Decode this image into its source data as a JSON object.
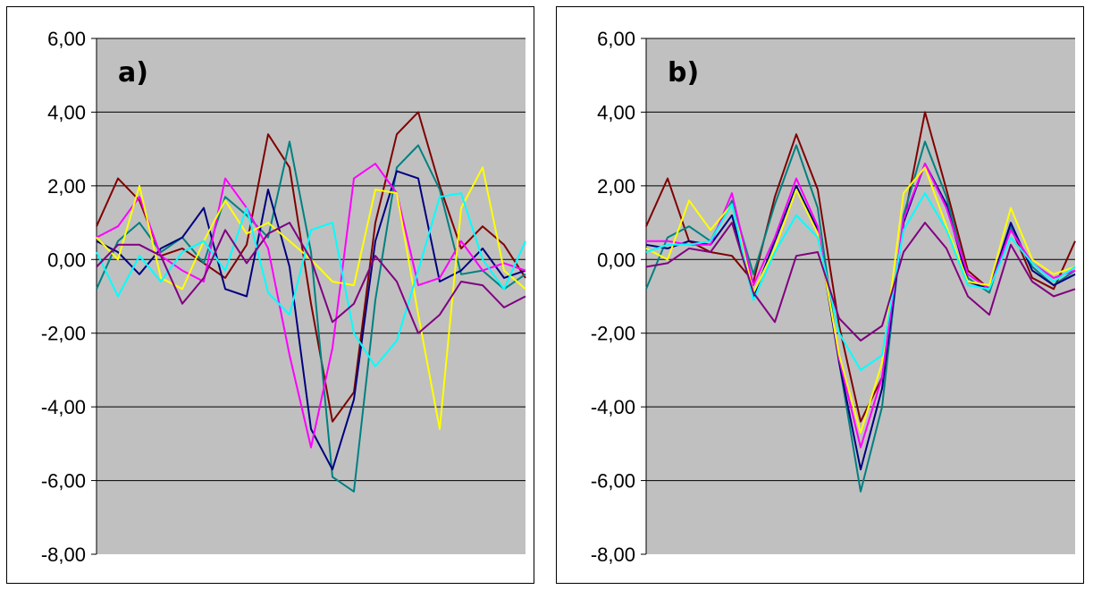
{
  "chart_data": [
    {
      "type": "line",
      "panel_label": "a)",
      "ylim": [
        -8,
        6
      ],
      "yticks": [
        "6,00",
        "4,00",
        "2,00",
        "0,00",
        "-2,00",
        "-4,00",
        "-6,00",
        "-8,00"
      ],
      "ytick_values": [
        6,
        4,
        2,
        0,
        -2,
        -4,
        -6,
        -8
      ],
      "grid": true,
      "plot_background": "#c0c0c0",
      "legend": "none",
      "x": [
        0,
        5,
        10,
        15,
        20,
        25,
        30,
        35,
        40,
        45,
        50,
        55,
        60,
        65,
        70,
        75,
        80,
        85,
        90,
        95,
        100
      ],
      "series": [
        {
          "color": "#800000",
          "values": [
            0.9,
            2.2,
            1.6,
            0.1,
            0.3,
            -0.1,
            -0.5,
            0.4,
            3.4,
            2.5,
            -1.2,
            -4.4,
            -3.6,
            1.0,
            3.4,
            4.0,
            2.0,
            0.3,
            0.9,
            0.4,
            -0.5
          ]
        },
        {
          "color": "#008080",
          "values": [
            -0.8,
            0.5,
            1.0,
            0.2,
            0.6,
            -0.1,
            1.7,
            1.2,
            0.6,
            3.2,
            0.2,
            -5.9,
            -6.3,
            -1.1,
            2.5,
            3.1,
            1.9,
            -0.4,
            -0.3,
            -0.8,
            -0.4
          ]
        },
        {
          "color": "#000080",
          "values": [
            0.5,
            0.2,
            -0.4,
            0.3,
            0.6,
            1.4,
            -0.8,
            -1.0,
            1.9,
            -0.2,
            -4.6,
            -5.7,
            -3.8,
            0.5,
            2.4,
            2.2,
            -0.6,
            -0.3,
            0.3,
            -0.5,
            -0.3
          ]
        },
        {
          "color": "#ff00ff",
          "values": [
            0.6,
            0.9,
            1.7,
            0.1,
            -0.3,
            -0.6,
            2.2,
            1.4,
            0.3,
            -2.6,
            -5.1,
            -2.4,
            2.2,
            2.6,
            1.8,
            -0.7,
            -0.5,
            0.5,
            -0.3,
            -0.1,
            -0.3
          ]
        },
        {
          "color": "#ffff00",
          "values": [
            0.6,
            0.0,
            2.0,
            -0.5,
            -0.8,
            0.5,
            1.6,
            0.7,
            1.0,
            0.5,
            0.0,
            -0.6,
            -0.7,
            1.9,
            1.8,
            -1.5,
            -4.6,
            1.4,
            2.5,
            -0.3,
            -0.8
          ]
        },
        {
          "color": "#00ffff",
          "values": [
            0.2,
            -1.0,
            0.1,
            -0.6,
            0.2,
            0.5,
            -0.3,
            1.4,
            -0.9,
            -1.5,
            0.8,
            1.0,
            -2.0,
            -2.9,
            -2.2,
            -0.3,
            1.7,
            1.8,
            0.0,
            -0.8,
            0.5
          ]
        },
        {
          "color": "#800080",
          "values": [
            -0.2,
            0.4,
            0.4,
            0.1,
            -1.2,
            -0.5,
            0.8,
            -0.1,
            0.7,
            1.0,
            0.0,
            -1.7,
            -1.2,
            0.1,
            -0.6,
            -2.0,
            -1.5,
            -0.6,
            -0.7,
            -1.3,
            -1.0
          ]
        }
      ]
    },
    {
      "type": "line",
      "panel_label": "b)",
      "ylim": [
        -8,
        6
      ],
      "yticks": [
        "6,00",
        "4,00",
        "2,00",
        "0,00",
        "-2,00",
        "-4,00",
        "-6,00",
        "-8,00"
      ],
      "ytick_values": [
        6,
        4,
        2,
        0,
        -2,
        -4,
        -6,
        -8
      ],
      "grid": true,
      "plot_background": "#c0c0c0",
      "legend": "none",
      "x": [
        0,
        5,
        10,
        15,
        20,
        25,
        30,
        35,
        40,
        45,
        50,
        55,
        60,
        65,
        70,
        75,
        80,
        85,
        90,
        95,
        100
      ],
      "series": [
        {
          "color": "#800000",
          "values": [
            0.9,
            2.2,
            0.5,
            0.2,
            0.1,
            -0.6,
            1.7,
            3.4,
            1.9,
            -1.8,
            -4.4,
            -3.2,
            1.0,
            4.0,
            1.9,
            -0.3,
            -0.8,
            0.9,
            -0.5,
            -0.8,
            0.5
          ]
        },
        {
          "color": "#008080",
          "values": [
            -0.8,
            0.6,
            0.9,
            0.5,
            1.6,
            -0.4,
            1.5,
            3.1,
            1.4,
            -2.8,
            -6.3,
            -4.0,
            1.2,
            3.2,
            1.7,
            -0.5,
            -0.9,
            0.9,
            -0.2,
            -0.7,
            -0.3
          ]
        },
        {
          "color": "#000080",
          "values": [
            0.4,
            0.3,
            0.5,
            0.4,
            1.2,
            -1.0,
            0.5,
            2.0,
            0.8,
            -2.8,
            -5.7,
            -3.5,
            1.0,
            2.6,
            1.5,
            -0.6,
            -0.8,
            1.0,
            -0.3,
            -0.7,
            -0.4
          ]
        },
        {
          "color": "#ff00ff",
          "values": [
            0.5,
            0.5,
            0.4,
            0.4,
            1.8,
            -0.7,
            0.6,
            2.2,
            0.9,
            -2.7,
            -5.1,
            -3.2,
            1.1,
            2.6,
            1.4,
            -0.4,
            -0.8,
            0.8,
            -0.1,
            -0.5,
            -0.3
          ]
        },
        {
          "color": "#ffff00",
          "values": [
            0.3,
            0.0,
            1.6,
            0.8,
            1.5,
            -0.9,
            0.3,
            1.9,
            0.7,
            -2.6,
            -4.7,
            -2.8,
            1.8,
            2.5,
            0.9,
            -0.6,
            -0.7,
            1.4,
            0.0,
            -0.4,
            -0.2
          ]
        },
        {
          "color": "#00ffff",
          "values": [
            0.2,
            0.4,
            0.4,
            0.5,
            1.5,
            -1.1,
            0.2,
            1.2,
            0.6,
            -2.0,
            -3.0,
            -2.6,
            0.8,
            1.8,
            0.8,
            -0.7,
            -0.8,
            0.6,
            -0.1,
            -0.6,
            -0.2
          ]
        },
        {
          "color": "#800080",
          "values": [
            -0.2,
            -0.1,
            0.3,
            0.2,
            1.0,
            -0.9,
            -1.7,
            0.1,
            0.2,
            -1.6,
            -2.2,
            -1.8,
            0.2,
            1.0,
            0.3,
            -1.0,
            -1.5,
            0.4,
            -0.6,
            -1.0,
            -0.8
          ]
        }
      ]
    }
  ]
}
